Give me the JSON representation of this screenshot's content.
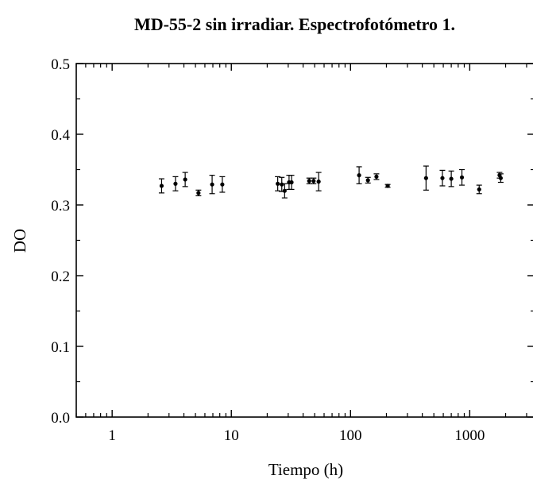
{
  "chart_data": {
    "type": "scatter",
    "title": "MD-55-2 sin irradiar. Espectrofotómetro 1.",
    "xlabel": "Tiempo (h)",
    "ylabel": "DO",
    "xscale": "log",
    "xlim": [
      0.5,
      3500
    ],
    "ylim": [
      0.0,
      0.5
    ],
    "x_ticks": [
      1,
      10,
      100,
      1000
    ],
    "x_tick_labels": [
      "1",
      "10",
      "100",
      "1000"
    ],
    "y_ticks": [
      0.0,
      0.1,
      0.2,
      0.3,
      0.4,
      0.5
    ],
    "y_tick_labels": [
      "0.0",
      "0.1",
      "0.2",
      "0.3",
      "0.4",
      "0.5"
    ],
    "grid": false,
    "legend": "none",
    "marker_color": "#000000",
    "series": [
      {
        "points": [
          {
            "x": 2.6,
            "y": 0.327,
            "err": 0.01
          },
          {
            "x": 3.4,
            "y": 0.33,
            "err": 0.01
          },
          {
            "x": 4.1,
            "y": 0.336,
            "err": 0.01
          },
          {
            "x": 5.3,
            "y": 0.317,
            "err": 0.004
          },
          {
            "x": 6.9,
            "y": 0.329,
            "err": 0.013
          },
          {
            "x": 8.4,
            "y": 0.329,
            "err": 0.011
          },
          {
            "x": 24.5,
            "y": 0.33,
            "err": 0.01
          },
          {
            "x": 26.5,
            "y": 0.329,
            "err": 0.01
          },
          {
            "x": 28.0,
            "y": 0.32,
            "err": 0.01
          },
          {
            "x": 30.5,
            "y": 0.332,
            "err": 0.01
          },
          {
            "x": 32.0,
            "y": 0.332,
            "err": 0.01
          },
          {
            "x": 45,
            "y": 0.334,
            "err": 0.004
          },
          {
            "x": 49,
            "y": 0.334,
            "err": 0.004
          },
          {
            "x": 54,
            "y": 0.333,
            "err": 0.013
          },
          {
            "x": 118,
            "y": 0.342,
            "err": 0.012
          },
          {
            "x": 140,
            "y": 0.335,
            "err": 0.004
          },
          {
            "x": 165,
            "y": 0.34,
            "err": 0.004
          },
          {
            "x": 205,
            "y": 0.327,
            "err": 0.002
          },
          {
            "x": 430,
            "y": 0.338,
            "err": 0.017
          },
          {
            "x": 590,
            "y": 0.338,
            "err": 0.011
          },
          {
            "x": 700,
            "y": 0.337,
            "err": 0.011
          },
          {
            "x": 860,
            "y": 0.339,
            "err": 0.011
          },
          {
            "x": 1200,
            "y": 0.322,
            "err": 0.006
          },
          {
            "x": 1780,
            "y": 0.342,
            "err": 0.004
          },
          {
            "x": 1820,
            "y": 0.338,
            "err": 0.006
          }
        ]
      }
    ]
  }
}
